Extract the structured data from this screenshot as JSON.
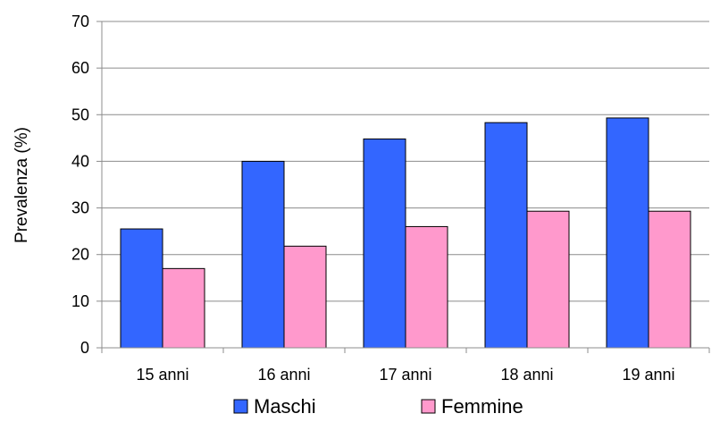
{
  "chart_data": {
    "type": "bar",
    "title": "",
    "xlabel": "",
    "ylabel": "Prevalenza (%)",
    "ylim": [
      0,
      70
    ],
    "yticks": [
      0,
      10,
      20,
      30,
      40,
      50,
      60,
      70
    ],
    "grid": true,
    "legend_position": "bottom",
    "categories": [
      "15 anni",
      "16 anni",
      "17 anni",
      "18 anni",
      "19 anni"
    ],
    "series": [
      {
        "name": "Maschi",
        "color": "#3366ff",
        "values": [
          25.5,
          40,
          44.8,
          48.3,
          49.3
        ]
      },
      {
        "name": "Femmine",
        "color": "#ff99cc",
        "values": [
          17,
          21.8,
          26,
          29.3,
          29.3
        ]
      }
    ]
  }
}
